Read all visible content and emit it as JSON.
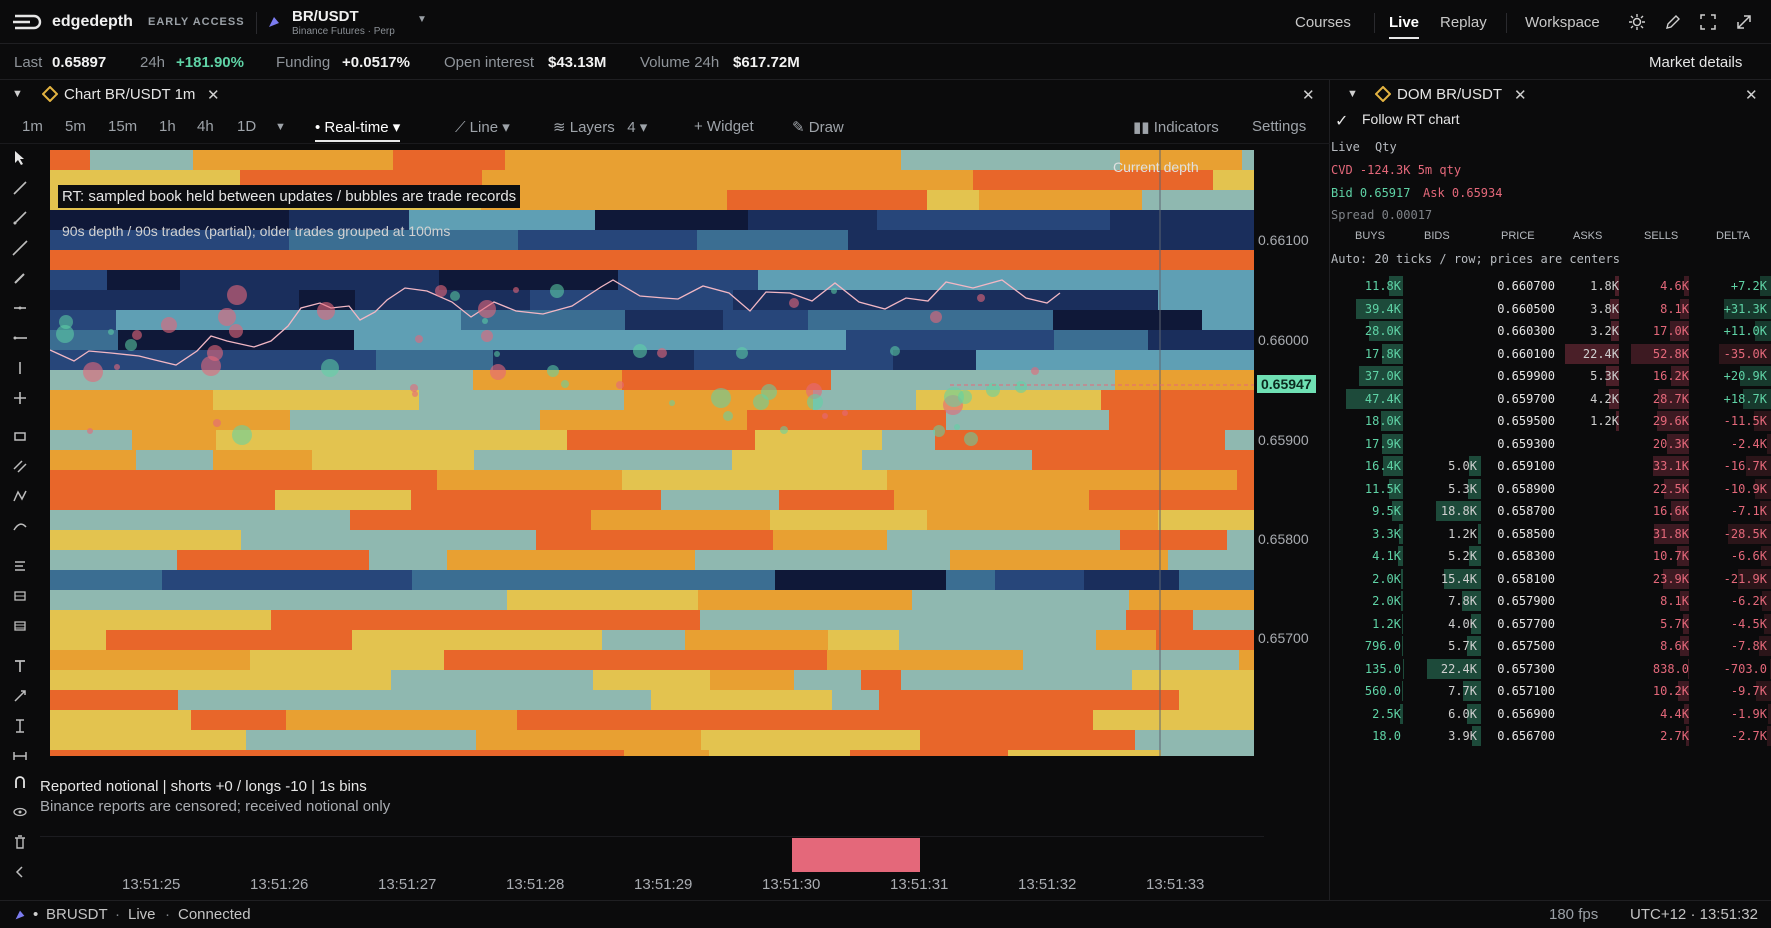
{
  "topnav": {
    "brand": "edgedepth",
    "badge": "EARLY ACCESS",
    "symbol": "BR/USDT",
    "symbol_sub": "Binance Futures · Perp",
    "links": [
      "Courses",
      "Live",
      "Replay",
      "Workspace"
    ],
    "active_link": "Live"
  },
  "ticker": {
    "last_label": "Last",
    "last_value": "0.65897",
    "change_label": "24h",
    "change_value": "+181.90%",
    "funding_label": "Funding",
    "funding_value": "+0.0517%",
    "oi_label": "Open interest",
    "oi_value": "$43.13M",
    "vol_label": "Volume 24h",
    "vol_value": "$617.72M",
    "market_details": "Market details"
  },
  "chart": {
    "title": "Chart  BR/USDT 1m",
    "timeframes": [
      "1m",
      "5m",
      "15m",
      "1h",
      "4h",
      "1D"
    ],
    "realtime": "Real-time",
    "line": "Line",
    "layers": "Layers",
    "layers_count": "4",
    "widget": "+ Widget",
    "draw": "Draw",
    "indicators": "Indicators",
    "settings": "Settings",
    "overlay_note": "RT: sampled book held between updates / bubbles are trade records",
    "overlay_sub": "90s depth / 90s trades (partial); older trades grouped at 100ms",
    "depth_label": "Current depth",
    "price_labels": [
      "0.66100",
      "0.66000",
      "0.65900",
      "0.65800",
      "0.65700"
    ],
    "current_price": "0.65947",
    "volume_label": "Reported notional | shorts +0 / longs -10 | 1s bins",
    "volume_sub": "Binance reports are censored; received notional only",
    "time_labels": [
      "13:51:25",
      "13:51:26",
      "13:51:27",
      "13:51:28",
      "13:51:29",
      "13:51:30",
      "13:51:31",
      "13:51:32",
      "13:51:33"
    ]
  },
  "dom": {
    "title": "DOM  BR/USDT",
    "follow": "Follow RT chart",
    "tab_live": "Live",
    "tab_qty": "Qty",
    "cvd": "CVD -124.3K 5m qty",
    "bid_ask_bid": "Bid 0.65917",
    "bid_ask_ask": "Ask 0.65934",
    "spread": "Spread 0.00017",
    "columns": [
      "BUYS",
      "BIDS",
      "PRICE",
      "ASKS",
      "SELLS",
      "DELTA"
    ],
    "auto_note": "Auto: 20 ticks / row; prices are centers",
    "rows": [
      {
        "buys": "11.8K",
        "bids": "",
        "price": "0.660700",
        "asks": "1.8K",
        "sells": "4.6K",
        "delta": "+7.2K"
      },
      {
        "buys": "39.4K",
        "bids": "",
        "price": "0.660500",
        "asks": "3.8K",
        "sells": "8.1K",
        "delta": "+31.3K"
      },
      {
        "buys": "28.0K",
        "bids": "",
        "price": "0.660300",
        "asks": "3.2K",
        "sells": "17.0K",
        "delta": "+11.0K"
      },
      {
        "buys": "17.8K",
        "bids": "",
        "price": "0.660100",
        "asks": "22.4K",
        "sells": "52.8K",
        "delta": "-35.0K"
      },
      {
        "buys": "37.0K",
        "bids": "",
        "price": "0.659900",
        "asks": "5.3K",
        "sells": "16.2K",
        "delta": "+20.9K"
      },
      {
        "buys": "47.4K",
        "bids": "",
        "price": "0.659700",
        "asks": "4.2K",
        "sells": "28.7K",
        "delta": "+18.7K"
      },
      {
        "buys": "18.0K",
        "bids": "",
        "price": "0.659500",
        "asks": "1.2K",
        "sells": "29.6K",
        "delta": "-11.5K"
      },
      {
        "buys": "17.9K",
        "bids": "",
        "price": "0.659300",
        "asks": "",
        "sells": "20.3K",
        "delta": "-2.4K"
      },
      {
        "buys": "16.4K",
        "bids": "5.0K",
        "price": "0.659100",
        "asks": "",
        "sells": "33.1K",
        "delta": "-16.7K"
      },
      {
        "buys": "11.5K",
        "bids": "5.3K",
        "price": "0.658900",
        "asks": "",
        "sells": "22.5K",
        "delta": "-10.9K"
      },
      {
        "buys": "9.5K",
        "bids": "18.8K",
        "price": "0.658700",
        "asks": "",
        "sells": "16.6K",
        "delta": "-7.1K"
      },
      {
        "buys": "3.3K",
        "bids": "1.2K",
        "price": "0.658500",
        "asks": "",
        "sells": "31.8K",
        "delta": "-28.5K"
      },
      {
        "buys": "4.1K",
        "bids": "5.2K",
        "price": "0.658300",
        "asks": "",
        "sells": "10.7K",
        "delta": "-6.6K"
      },
      {
        "buys": "2.0K",
        "bids": "15.4K",
        "price": "0.658100",
        "asks": "",
        "sells": "23.9K",
        "delta": "-21.9K"
      },
      {
        "buys": "2.0K",
        "bids": "7.8K",
        "price": "0.657900",
        "asks": "",
        "sells": "8.1K",
        "delta": "-6.2K"
      },
      {
        "buys": "1.2K",
        "bids": "4.0K",
        "price": "0.657700",
        "asks": "",
        "sells": "5.7K",
        "delta": "-4.5K"
      },
      {
        "buys": "796.0",
        "bids": "5.7K",
        "price": "0.657500",
        "asks": "",
        "sells": "8.6K",
        "delta": "-7.8K"
      },
      {
        "buys": "135.0",
        "bids": "22.4K",
        "price": "0.657300",
        "asks": "",
        "sells": "838.0",
        "delta": "-703.0"
      },
      {
        "buys": "560.0",
        "bids": "7.7K",
        "price": "0.657100",
        "asks": "",
        "sells": "10.2K",
        "delta": "-9.7K"
      },
      {
        "buys": "2.5K",
        "bids": "6.0K",
        "price": "0.656900",
        "asks": "",
        "sells": "4.4K",
        "delta": "-1.9K"
      },
      {
        "buys": "18.0",
        "bids": "3.9K",
        "price": "0.656700",
        "asks": "",
        "sells": "2.7K",
        "delta": "-2.7K"
      }
    ]
  },
  "statusbar": {
    "symbol": "BRUSDT",
    "mode": "Live",
    "conn": "Connected",
    "fps": "180 fps",
    "clock": "UTC+12 · 13:51:32"
  },
  "colors": {
    "accent": "#6fe0b4",
    "sell": "#e4687a",
    "buy_bar": "#1f4a3a",
    "sell_bar": "#4a1f28",
    "heat_hot": "#e8662a",
    "heat_warm": "#e3c34f",
    "heat_cool": "#5f9fb4",
    "heat_cold": "#101a3a"
  }
}
